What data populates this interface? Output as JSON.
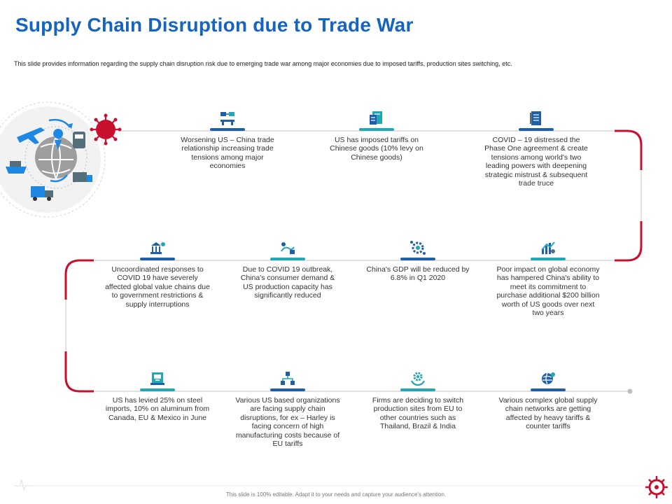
{
  "header": {
    "title": "Supply Chain Disruption due to Trade War",
    "subtitle": "This slide provides information regarding the supply chain disruption risk due to emerging trade war among major economies due to imposed tariffs, production sites switching, etc."
  },
  "colors": {
    "title": "#1565c0",
    "accent_red": "#c8102e",
    "dark_blue_bar": "#1e5fa8",
    "teal_bar": "#22a7b5",
    "line_gray": "#cfcfcf"
  },
  "rows": [
    {
      "steps": [
        {
          "icon": "trade-relationship-icon",
          "bar": "dark",
          "text": "Worsening US – China trade relationship increasing trade tensions among major economies"
        },
        {
          "icon": "tariff-document-icon",
          "bar": "teal",
          "text": "US has imposed tariffs on Chinese goods (10% levy on Chinese goods)"
        },
        {
          "icon": "agreement-document-icon",
          "bar": "dark",
          "text": "COVID – 19 distressed the Phase One agreement & create tensions among world's two leading powers  with deepening strategic mistrust  & subsequent trade truce"
        }
      ]
    },
    {
      "steps": [
        {
          "icon": "government-response-icon",
          "bar": "dark",
          "text": "Uncoordinated responses to COVID 19 have severely affected global value chains due to  government restrictions & supply interruptions"
        },
        {
          "icon": "consumer-demand-icon",
          "bar": "teal",
          "text": "Due to COVID  19 outbreak, China's consumer demand & US production capacity has significantly reduced"
        },
        {
          "icon": "gdp-gear-icon",
          "bar": "dark",
          "text": "China's GDP will be reduced by 6.8% in Q1 2020"
        },
        {
          "icon": "economy-chart-icon",
          "bar": "teal",
          "text": "Poor impact on global economy has hampered China's ability to meet its commitment to purchase additional $200 billion worth of US goods over next two years"
        }
      ]
    },
    {
      "steps": [
        {
          "icon": "steel-imports-icon",
          "bar": "teal",
          "text": "US has levied 25% on steel imports, 10% on aluminum from Canada, EU & Mexico  in June"
        },
        {
          "icon": "organization-network-icon",
          "bar": "dark",
          "text": "Various US based organizations are facing supply chain disruptions, for ex – Harley is facing concern of high manufacturing costs because of EU tariffs"
        },
        {
          "icon": "production-switch-icon",
          "bar": "teal",
          "text": "Firms are deciding to switch production sites from EU to other countries such as Thailand, Brazil & India"
        },
        {
          "icon": "global-network-icon",
          "bar": "dark",
          "text": "Various complex global supply chain networks are getting affected by heavy tariffs & counter tariffs"
        }
      ]
    }
  ],
  "hero": {
    "icon": "global-logistics-icon",
    "virus_icon": "virus-icon"
  },
  "footer": {
    "text": "This slide is 100% editable. Adapt it to your needs and capture your audience's attention.",
    "corner_icon": "virus-corner-icon"
  }
}
